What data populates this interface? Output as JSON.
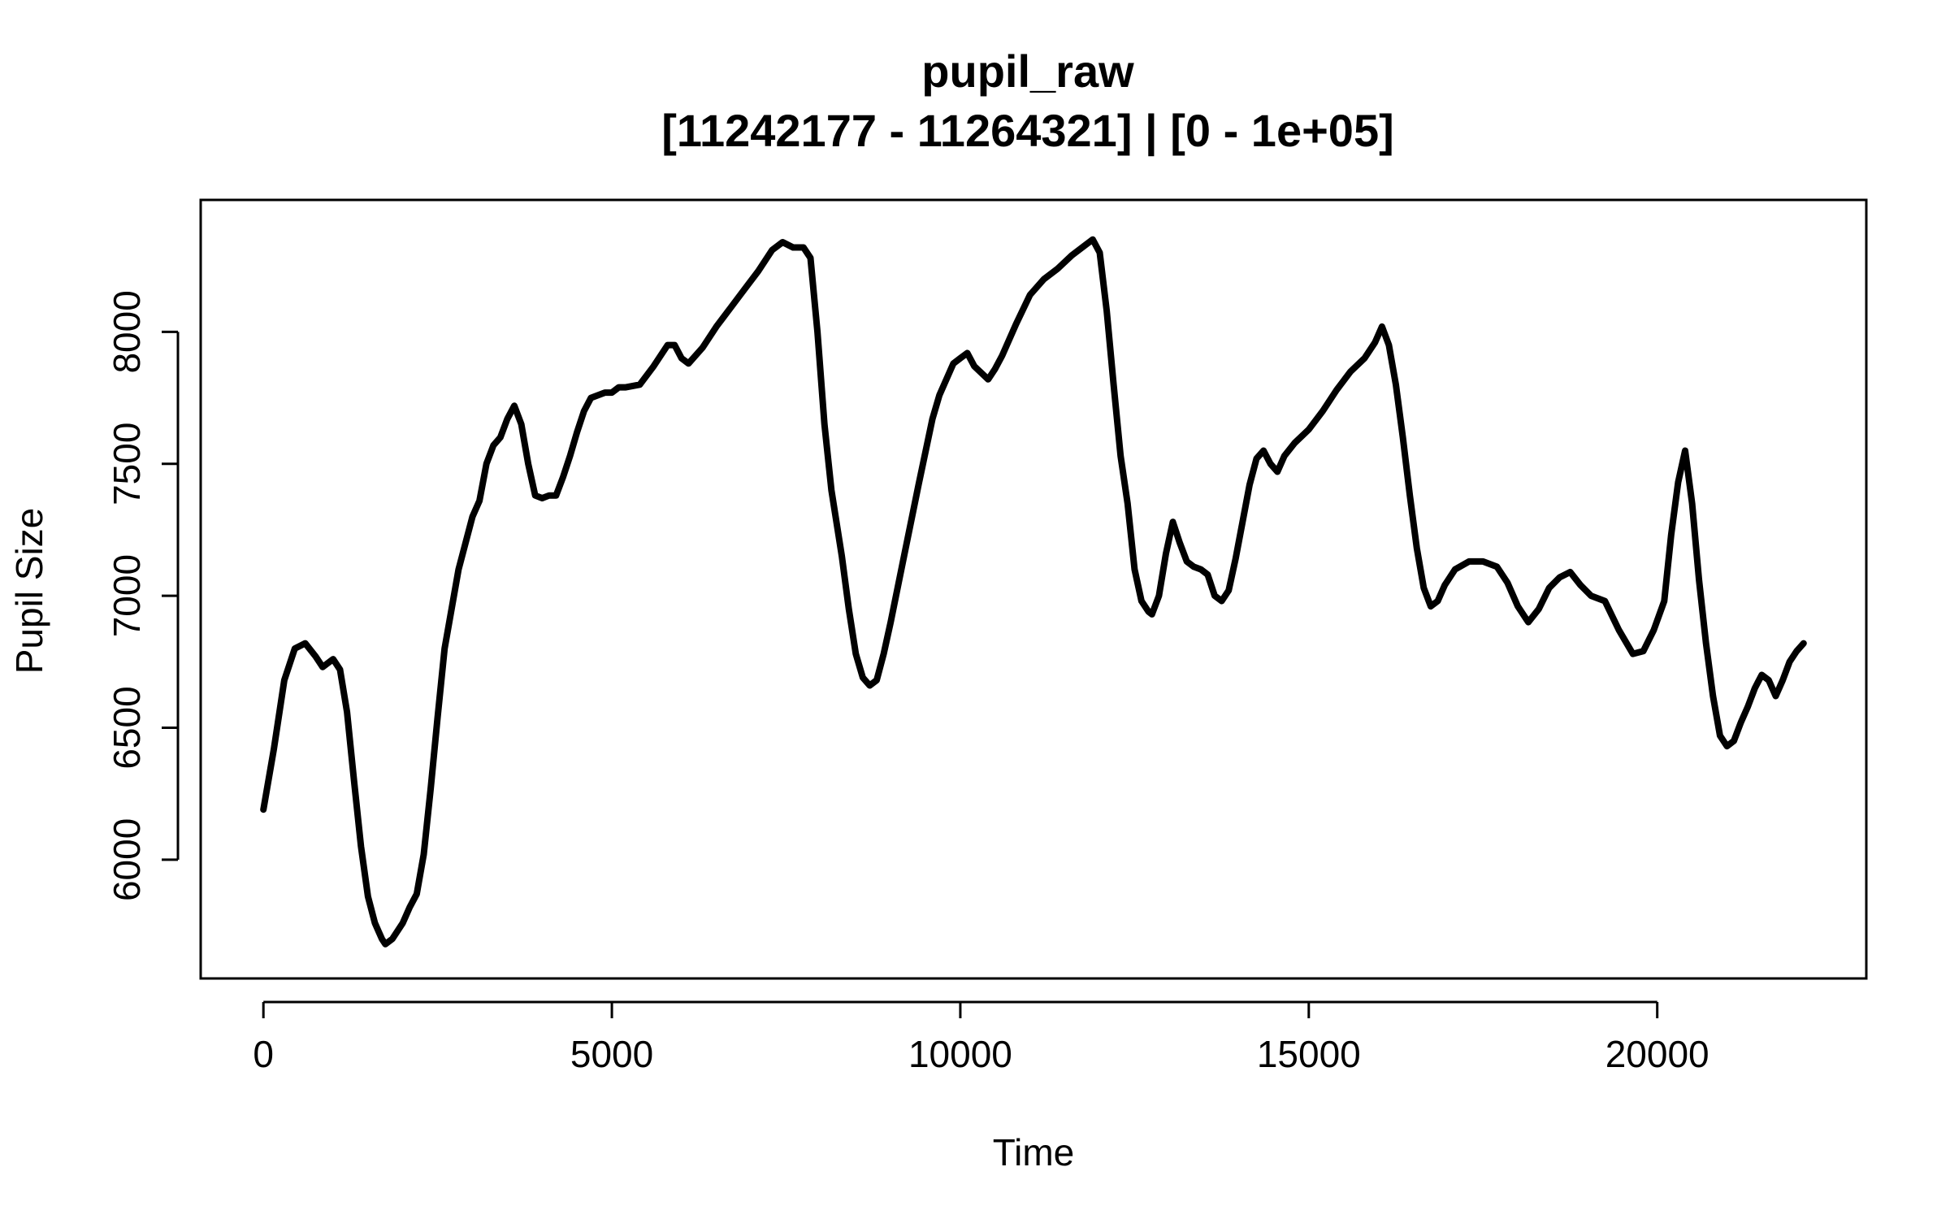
{
  "chart_data": {
    "type": "line",
    "title": "pupil_raw",
    "subtitle": "[11242177 - 11264321] | [0 - 1e+05]",
    "xlabel": "Time",
    "ylabel": "Pupil Size",
    "xlim": [
      -900,
      23000
    ],
    "ylim": [
      5550,
      8500
    ],
    "xticks": [
      0,
      5000,
      10000,
      15000,
      20000
    ],
    "xtick_labels": [
      "0",
      "5000",
      "10000",
      "15000",
      "20000"
    ],
    "yticks": [
      6000,
      6500,
      7000,
      7500,
      8000
    ],
    "ytick_labels": [
      "6000",
      "6500",
      "7000",
      "7500",
      "8000"
    ],
    "grid": false,
    "series": [
      {
        "color": "#000000",
        "x": [
          0,
          150,
          300,
          450,
          600,
          750,
          850,
          1000,
          1100,
          1200,
          1300,
          1400,
          1500,
          1600,
          1700,
          1750,
          1850,
          2000,
          2100,
          2200,
          2300,
          2400,
          2500,
          2600,
          2800,
          3000,
          3100,
          3200,
          3300,
          3400,
          3500,
          3600,
          3700,
          3800,
          3900,
          4000,
          4100,
          4200,
          4300,
          4400,
          4500,
          4600,
          4700,
          4900,
          5000,
          5100,
          5200,
          5400,
          5600,
          5800,
          5900,
          6000,
          6100,
          6300,
          6500,
          6700,
          6900,
          7100,
          7300,
          7450,
          7600,
          7750,
          7850,
          7950,
          8050,
          8150,
          8300,
          8400,
          8500,
          8600,
          8700,
          8800,
          8900,
          9000,
          9200,
          9400,
          9600,
          9700,
          9800,
          9900,
          10000,
          10100,
          10200,
          10400,
          10500,
          10600,
          10800,
          11000,
          11200,
          11400,
          11600,
          11800,
          11900,
          12000,
          12100,
          12200,
          12300,
          12400,
          12500,
          12600,
          12700,
          12750,
          12850,
          12950,
          13050,
          13150,
          13250,
          13350,
          13450,
          13550,
          13650,
          13750,
          13850,
          13950,
          14050,
          14150,
          14250,
          14350,
          14450,
          14550,
          14650,
          14800,
          15000,
          15200,
          15400,
          15600,
          15800,
          15950,
          16050,
          16150,
          16250,
          16350,
          16450,
          16550,
          16650,
          16750,
          16850,
          16950,
          17100,
          17300,
          17500,
          17700,
          17850,
          18000,
          18150,
          18300,
          18450,
          18600,
          18750,
          18900,
          19050,
          19250,
          19450,
          19650,
          19800,
          19950,
          20100,
          20200,
          20300,
          20400,
          20500,
          20600,
          20700,
          20800,
          20900,
          21000,
          21100,
          21200,
          21300,
          21400,
          21500,
          21600,
          21700,
          21800,
          21900,
          22000,
          22100
        ],
        "y": [
          6190,
          6420,
          6680,
          6800,
          6820,
          6770,
          6730,
          6760,
          6720,
          6560,
          6300,
          6050,
          5860,
          5760,
          5700,
          5680,
          5700,
          5760,
          5820,
          5870,
          6020,
          6270,
          6540,
          6800,
          7100,
          7300,
          7360,
          7500,
          7570,
          7600,
          7670,
          7720,
          7650,
          7500,
          7380,
          7370,
          7380,
          7380,
          7450,
          7530,
          7620,
          7700,
          7750,
          7770,
          7770,
          7790,
          7790,
          7800,
          7870,
          7950,
          7950,
          7900,
          7880,
          7940,
          8020,
          8090,
          8160,
          8230,
          8310,
          8340,
          8320,
          8320,
          8280,
          8000,
          7650,
          7400,
          7150,
          6950,
          6780,
          6690,
          6660,
          6680,
          6780,
          6900,
          7160,
          7420,
          7670,
          7760,
          7820,
          7880,
          7900,
          7920,
          7870,
          7820,
          7860,
          7910,
          8030,
          8140,
          8200,
          8240,
          8290,
          8330,
          8350,
          8300,
          8080,
          7800,
          7530,
          7350,
          7100,
          6980,
          6940,
          6930,
          7000,
          7160,
          7280,
          7200,
          7130,
          7110,
          7100,
          7080,
          7000,
          6980,
          7020,
          7140,
          7280,
          7420,
          7520,
          7550,
          7500,
          7470,
          7530,
          7580,
          7630,
          7700,
          7780,
          7850,
          7900,
          7960,
          8020,
          7950,
          7800,
          7600,
          7380,
          7180,
          7030,
          6960,
          6980,
          7040,
          7100,
          7130,
          7130,
          7110,
          7050,
          6960,
          6900,
          6950,
          7030,
          7070,
          7090,
          7040,
          7000,
          6980,
          6870,
          6780,
          6790,
          6870,
          6980,
          7230,
          7430,
          7550,
          7350,
          7060,
          6820,
          6620,
          6470,
          6430,
          6450,
          6520,
          6580,
          6650,
          6700,
          6680,
          6620,
          6680,
          6750,
          6790,
          6820
        ]
      }
    ]
  }
}
